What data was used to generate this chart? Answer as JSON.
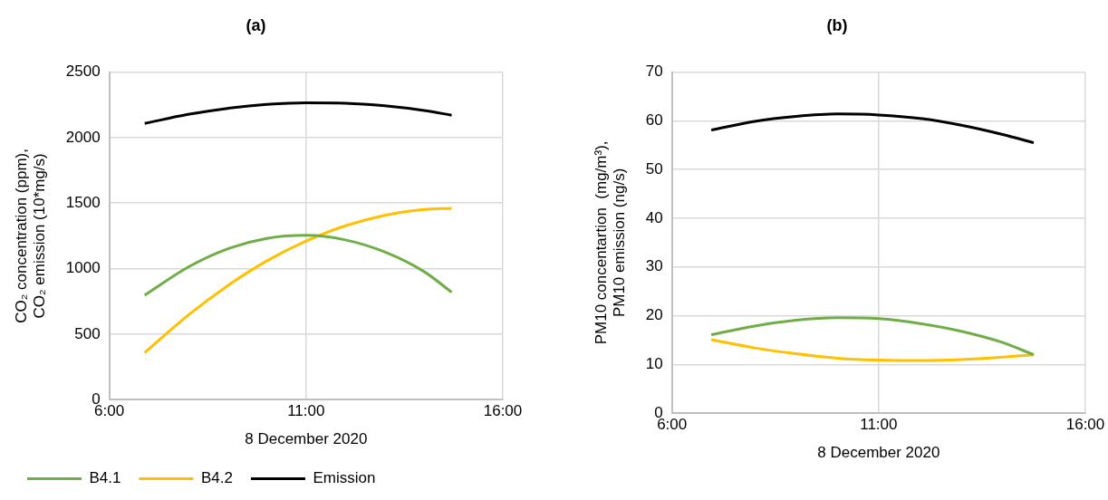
{
  "chart_data": [
    {
      "type": "line",
      "title": "(a)",
      "xlabel": "8 December 2020",
      "ylabel": "CO₂ concentration (ppm), CO₂ emission (10*mg/s)",
      "x": [
        6.9,
        8,
        9,
        10,
        11,
        12,
        13,
        14,
        14.7
      ],
      "series": [
        {
          "name": "B4.1",
          "color": "#70ad47",
          "values": [
            797,
            1011,
            1150,
            1231,
            1254,
            1219,
            1127,
            977,
            820
          ]
        },
        {
          "name": "B4.2",
          "color": "#ffc000",
          "values": [
            358,
            643,
            868,
            1058,
            1210,
            1327,
            1407,
            1451,
            1460
          ]
        },
        {
          "name": "Emission",
          "color": "#000000",
          "values": [
            2108,
            2177,
            2223,
            2253,
            2266,
            2263,
            2243,
            2207,
            2171
          ]
        }
      ],
      "xlim": [
        6,
        16
      ],
      "xticks": [
        {
          "value": 6,
          "label": "6:00"
        },
        {
          "value": 11,
          "label": "11:00"
        },
        {
          "value": 16,
          "label": "16:00"
        }
      ],
      "ylim": [
        0,
        2500
      ],
      "yticks": [
        0,
        500,
        1000,
        1500,
        2000,
        2500
      ],
      "grid": true,
      "legend": "bottom",
      "marker": "none",
      "line_style": "solid"
    },
    {
      "type": "line",
      "title": "(b)",
      "xlabel": "8 December 2020",
      "ylabel": "PM10 concentartion  (mg/m³), PM10 emission (ng/s)",
      "x": [
        6.95,
        8,
        9,
        10,
        11,
        12,
        13,
        14,
        14.75
      ],
      "series": [
        {
          "color": "#70ad47",
          "values": [
            16.1,
            17.9,
            19.1,
            19.6,
            19.4,
            18.4,
            16.8,
            14.5,
            12.0
          ]
        },
        {
          "color": "#ffc000",
          "values": [
            15.1,
            13.4,
            12.2,
            11.3,
            10.9,
            10.8,
            11.0,
            11.5,
            12.0
          ]
        },
        {
          "color": "#000000",
          "values": [
            58.1,
            59.9,
            60.9,
            61.4,
            61.2,
            60.5,
            59.1,
            57.2,
            55.5
          ]
        }
      ],
      "xlim": [
        6,
        16
      ],
      "xticks": [
        {
          "value": 6,
          "label": "6:00"
        },
        {
          "value": 11,
          "label": "11:00"
        },
        {
          "value": 16,
          "label": "16:00"
        }
      ],
      "ylim": [
        0,
        70
      ],
      "yticks": [
        0,
        10,
        20,
        30,
        40,
        50,
        60,
        70
      ],
      "grid": true,
      "legend": false,
      "marker": "none",
      "line_style": "solid"
    }
  ]
}
